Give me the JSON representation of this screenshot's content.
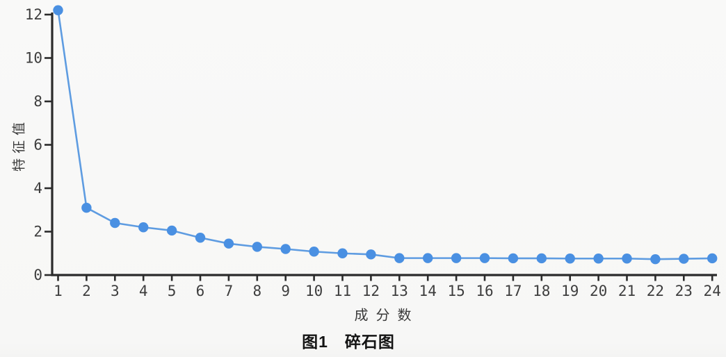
{
  "chart_data": {
    "type": "line",
    "title": "",
    "caption": "图1　碎石图",
    "xlabel": "成分数",
    "ylabel": "特征值",
    "x": [
      1,
      2,
      3,
      4,
      5,
      6,
      7,
      8,
      9,
      10,
      11,
      12,
      13,
      14,
      15,
      16,
      17,
      18,
      19,
      20,
      21,
      22,
      23,
      24
    ],
    "values": [
      12.2,
      3.1,
      2.4,
      2.2,
      2.05,
      1.72,
      1.45,
      1.3,
      1.2,
      1.08,
      1.0,
      0.95,
      0.78,
      0.78,
      0.78,
      0.78,
      0.77,
      0.77,
      0.76,
      0.76,
      0.76,
      0.73,
      0.75,
      0.77
    ],
    "xlim": [
      1,
      24
    ],
    "ylim": [
      0,
      12
    ],
    "yticks": [
      0,
      2,
      4,
      6,
      8,
      10,
      12
    ],
    "grid": false,
    "legend_position": "none",
    "marker": "circle",
    "colors": {
      "line": "#5e9ce1",
      "marker": "#4a90e2",
      "axis": "#2b2b2b",
      "tick_text": "#3d3d3d",
      "background": "#f8f8f7",
      "caption_text": "#141414"
    }
  }
}
